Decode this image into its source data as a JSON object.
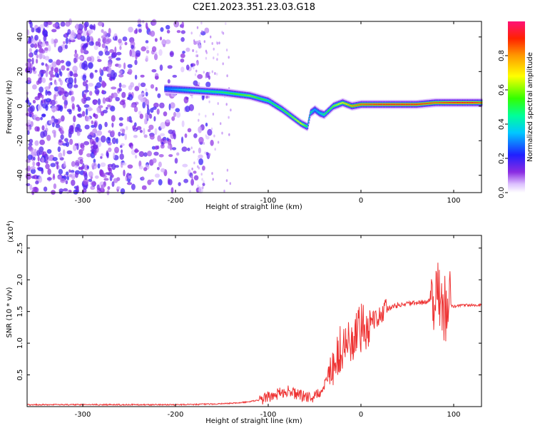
{
  "title": "C2E1.2023.351.23.03.G18",
  "chart_data": [
    {
      "type": "heatmap",
      "xlabel": "Height of straight line (km)",
      "ylabel": "Frequency (Hz)",
      "xlim": [
        -360,
        130
      ],
      "ylim": [
        -50,
        49
      ],
      "xticks": [
        -300,
        -200,
        -100,
        0,
        100
      ],
      "yticks": [
        -40,
        -20,
        0,
        20,
        40
      ],
      "colorbar": {
        "label": "Normalized spectral amplitude",
        "range": [
          0,
          1
        ],
        "ticks": [
          "0.0",
          "0.2",
          "0.4",
          "0.6",
          "0.8"
        ],
        "colormap": "rainbow"
      },
      "ridge": {
        "x": [
          -210,
          -180,
          -150,
          -120,
          -100,
          -85,
          -75,
          -65,
          -58,
          -55,
          -50,
          -45,
          -40,
          -30,
          -20,
          -10,
          0,
          20,
          40,
          60,
          80,
          100,
          120,
          130
        ],
        "y": [
          10,
          9,
          8,
          6,
          3,
          -2,
          -6,
          -10,
          -12,
          -4,
          -2,
          -4,
          -5,
          0,
          2,
          0,
          1,
          1,
          1,
          1,
          2,
          2,
          2,
          2
        ],
        "peak_amplitude": [
          0.3,
          0.45,
          0.5,
          0.6,
          0.5,
          0.55,
          0.6,
          0.7,
          0.5,
          0.5,
          0.35,
          0.4,
          0.5,
          0.6,
          0.7,
          0.8,
          0.85,
          0.9,
          0.9,
          0.9,
          0.85,
          0.9,
          0.9,
          0.85
        ]
      }
    },
    {
      "type": "line",
      "xlabel": "Height of straight line (km)",
      "ylabel": "SNR (10 * v/v)",
      "yscale_label": "(x10",
      "yscale_exp": "4",
      "xlim": [
        -360,
        130
      ],
      "ylim": [
        0,
        2.7
      ],
      "xticks": [
        -300,
        -200,
        -100,
        0,
        100
      ],
      "yticks": [
        0.5,
        1.0,
        1.5,
        2.0,
        2.5
      ],
      "series": [
        {
          "color": "#ee3333",
          "x": [
            -360,
            -300,
            -250,
            -200,
            -160,
            -130,
            -110,
            -100,
            -90,
            -80,
            -70,
            -60,
            -50,
            -40,
            -35,
            -32,
            -30,
            -25,
            -20,
            -15,
            -10,
            -5,
            0,
            10,
            20,
            30,
            40,
            50,
            60,
            70,
            80,
            85,
            90,
            95,
            100,
            110,
            120,
            130
          ],
          "y": [
            0.03,
            0.03,
            0.03,
            0.03,
            0.04,
            0.06,
            0.1,
            0.15,
            0.2,
            0.25,
            0.2,
            0.15,
            0.15,
            0.3,
            0.5,
            0.8,
            0.6,
            0.8,
            0.9,
            1.0,
            1.0,
            1.1,
            1.2,
            1.35,
            1.45,
            1.55,
            1.6,
            1.62,
            1.63,
            1.65,
            1.7,
            1.75,
            1.55,
            1.6,
            1.58,
            1.6,
            1.6,
            1.6
          ]
        }
      ]
    }
  ]
}
